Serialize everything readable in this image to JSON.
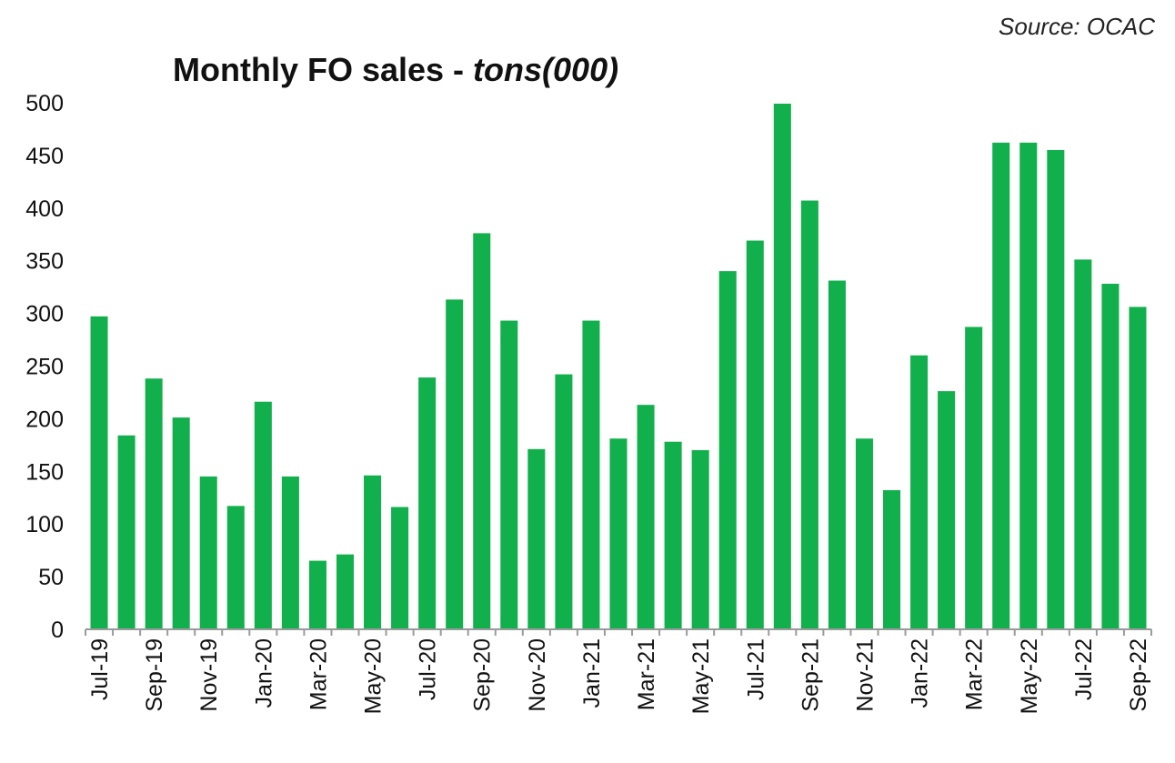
{
  "source": "Source: OCAC",
  "chart_data": {
    "type": "bar",
    "title": "Monthly FO sales - ",
    "title_unit": "tons(000)",
    "xlabel": "",
    "ylabel": "",
    "ylim": [
      0,
      500
    ],
    "yticks": [
      0,
      50,
      100,
      150,
      200,
      250,
      300,
      350,
      400,
      450,
      500
    ],
    "grid": false,
    "legend": "none",
    "bar_color": "#12b04c",
    "bar_edge_color": "#ffffff",
    "categories": [
      "Jul-19",
      "Aug-19",
      "Sep-19",
      "Oct-19",
      "Nov-19",
      "Dec-19",
      "Jan-20",
      "Feb-20",
      "Mar-20",
      "Apr-20",
      "May-20",
      "Jun-20",
      "Jul-20",
      "Aug-20",
      "Sep-20",
      "Oct-20",
      "Nov-20",
      "Dec-20",
      "Jan-21",
      "Feb-21",
      "Mar-21",
      "Apr-21",
      "May-21",
      "Jun-21",
      "Jul-21",
      "Aug-21",
      "Sep-21",
      "Oct-21",
      "Nov-21",
      "Dec-21",
      "Jan-22",
      "Feb-22",
      "Mar-22",
      "Apr-22",
      "May-22",
      "Jun-22",
      "Jul-22",
      "Aug-22",
      "Sep-22"
    ],
    "tick_labels": [
      "Jul-19",
      "",
      "Sep-19",
      "",
      "Nov-19",
      "",
      "Jan-20",
      "",
      "Mar-20",
      "",
      "May-20",
      "",
      "Jul-20",
      "",
      "Sep-20",
      "",
      "Nov-20",
      "",
      "Jan-21",
      "",
      "Mar-21",
      "",
      "May-21",
      "",
      "Jul-21",
      "",
      "Sep-21",
      "",
      "Nov-21",
      "",
      "Jan-22",
      "",
      "Mar-22",
      "",
      "May-22",
      "",
      "Jul-22",
      "",
      "Sep-22"
    ],
    "values": [
      298,
      185,
      239,
      202,
      146,
      118,
      217,
      146,
      66,
      72,
      147,
      117,
      240,
      314,
      377,
      294,
      172,
      243,
      294,
      182,
      214,
      179,
      171,
      341,
      370,
      500,
      408,
      332,
      182,
      133,
      261,
      227,
      288,
      463,
      463,
      456,
      352,
      329,
      307
    ]
  }
}
